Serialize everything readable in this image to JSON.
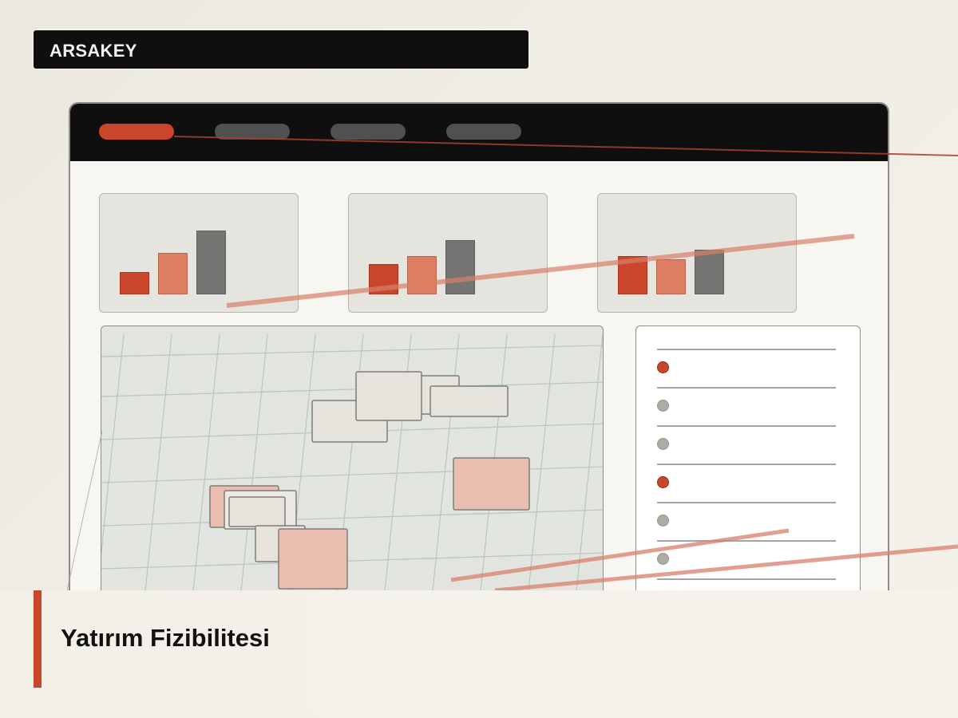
{
  "header": {
    "brand": "ARSAKEY"
  },
  "nav": {
    "pills": [
      {
        "state": "active"
      },
      {
        "state": "inactive"
      },
      {
        "state": "inactive"
      },
      {
        "state": "inactive"
      }
    ]
  },
  "chart_data": [
    {
      "type": "bar",
      "values": [
        28,
        52,
        80
      ]
    },
    {
      "type": "bar",
      "values": [
        38,
        48,
        68
      ]
    },
    {
      "type": "bar",
      "values": [
        48,
        44,
        56
      ]
    }
  ],
  "list_panel": {
    "items": [
      {
        "status": "active"
      },
      {
        "status": "inactive"
      },
      {
        "status": "inactive"
      },
      {
        "status": "active"
      },
      {
        "status": "inactive"
      },
      {
        "status": "inactive"
      },
      {
        "status": "active"
      }
    ]
  },
  "footer": {
    "title": "Yatırım Fizibilitesi"
  },
  "colors": {
    "accent": "#c9462a",
    "accent_light": "#dd7d62",
    "dark": "#0f0f0f",
    "gray_bar": "#767574"
  }
}
